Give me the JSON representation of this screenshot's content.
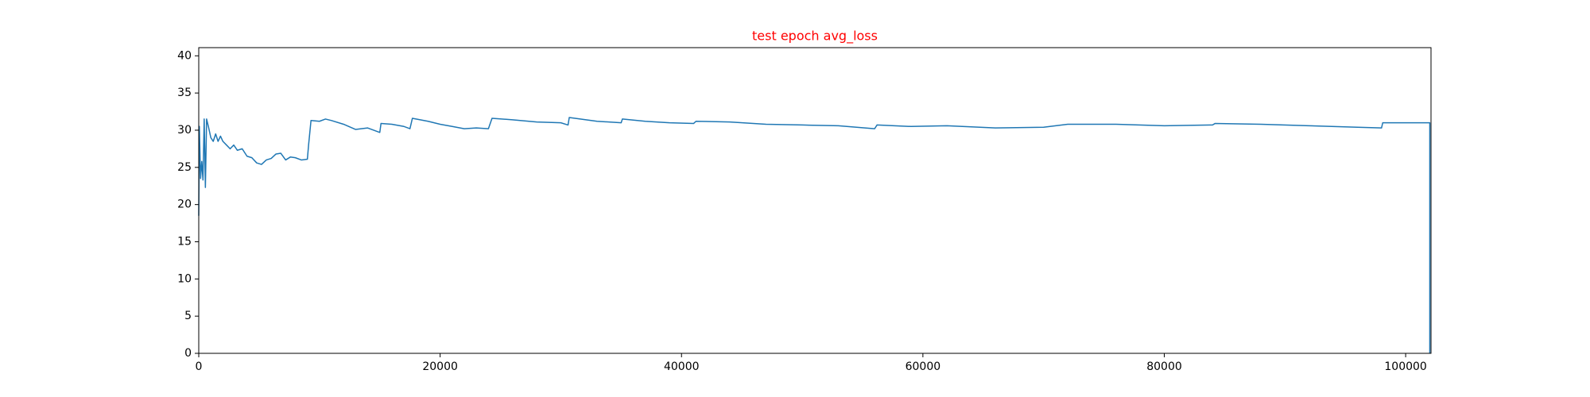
{
  "chart_data": {
    "type": "line",
    "title": "test epoch avg_loss",
    "title_color": "#ff0000",
    "x": [
      0,
      50,
      150,
      250,
      350,
      450,
      550,
      650,
      800,
      1000,
      1200,
      1400,
      1600,
      1800,
      2000,
      2300,
      2600,
      2900,
      3200,
      3600,
      4000,
      4400,
      4800,
      5200,
      5600,
      6000,
      6400,
      6800,
      7200,
      7600,
      8000,
      8500,
      9000,
      9100,
      9300,
      10000,
      10500,
      11000,
      12000,
      13000,
      14000,
      15000,
      15100,
      16000,
      17000,
      17500,
      17700,
      19000,
      20000,
      21000,
      22000,
      23000,
      24000,
      24300,
      26000,
      28000,
      30000,
      30600,
      30700,
      33000,
      35000,
      35100,
      37000,
      39000,
      41000,
      41200,
      44000,
      47000,
      50000,
      53000,
      56000,
      56200,
      59000,
      62000,
      66000,
      70000,
      72000,
      76000,
      80000,
      84000,
      84200,
      88000,
      92000,
      96000,
      98000,
      98100,
      102000,
      102000
    ],
    "series": [
      {
        "name": "avg_loss",
        "color": "#1f77b4",
        "values": [
          18.5,
          30.5,
          23.5,
          25.8,
          23.3,
          31.5,
          22.3,
          31.5,
          30.5,
          29,
          28.5,
          29.5,
          28.5,
          29.2,
          28.5,
          28,
          27.5,
          28,
          27.3,
          27.5,
          26.5,
          26.3,
          25.6,
          25.4,
          26,
          26.2,
          26.8,
          26.9,
          26,
          26.4,
          26.3,
          26,
          26.1,
          28,
          31.3,
          31.2,
          31.5,
          31.3,
          30.8,
          30.1,
          30.3,
          29.7,
          30.9,
          30.8,
          30.5,
          30.2,
          31.6,
          31.2,
          30.8,
          30.5,
          30.2,
          30.3,
          30.2,
          31.6,
          31.4,
          31.1,
          31,
          30.7,
          31.7,
          31.2,
          31,
          31.5,
          31.2,
          31,
          30.9,
          31.2,
          31.1,
          30.8,
          30.7,
          30.6,
          30.2,
          30.7,
          30.5,
          30.6,
          30.3,
          30.4,
          30.8,
          30.8,
          30.6,
          30.7,
          30.9,
          30.8,
          30.6,
          30.4,
          30.3,
          31,
          31,
          0
        ]
      }
    ],
    "xlim": [
      0,
      102100
    ],
    "ylim": [
      0,
      41.1
    ],
    "xticks": [
      0,
      20000,
      40000,
      60000,
      80000,
      100000
    ],
    "yticks": [
      0,
      5,
      10,
      15,
      20,
      25,
      30,
      35,
      40
    ]
  }
}
